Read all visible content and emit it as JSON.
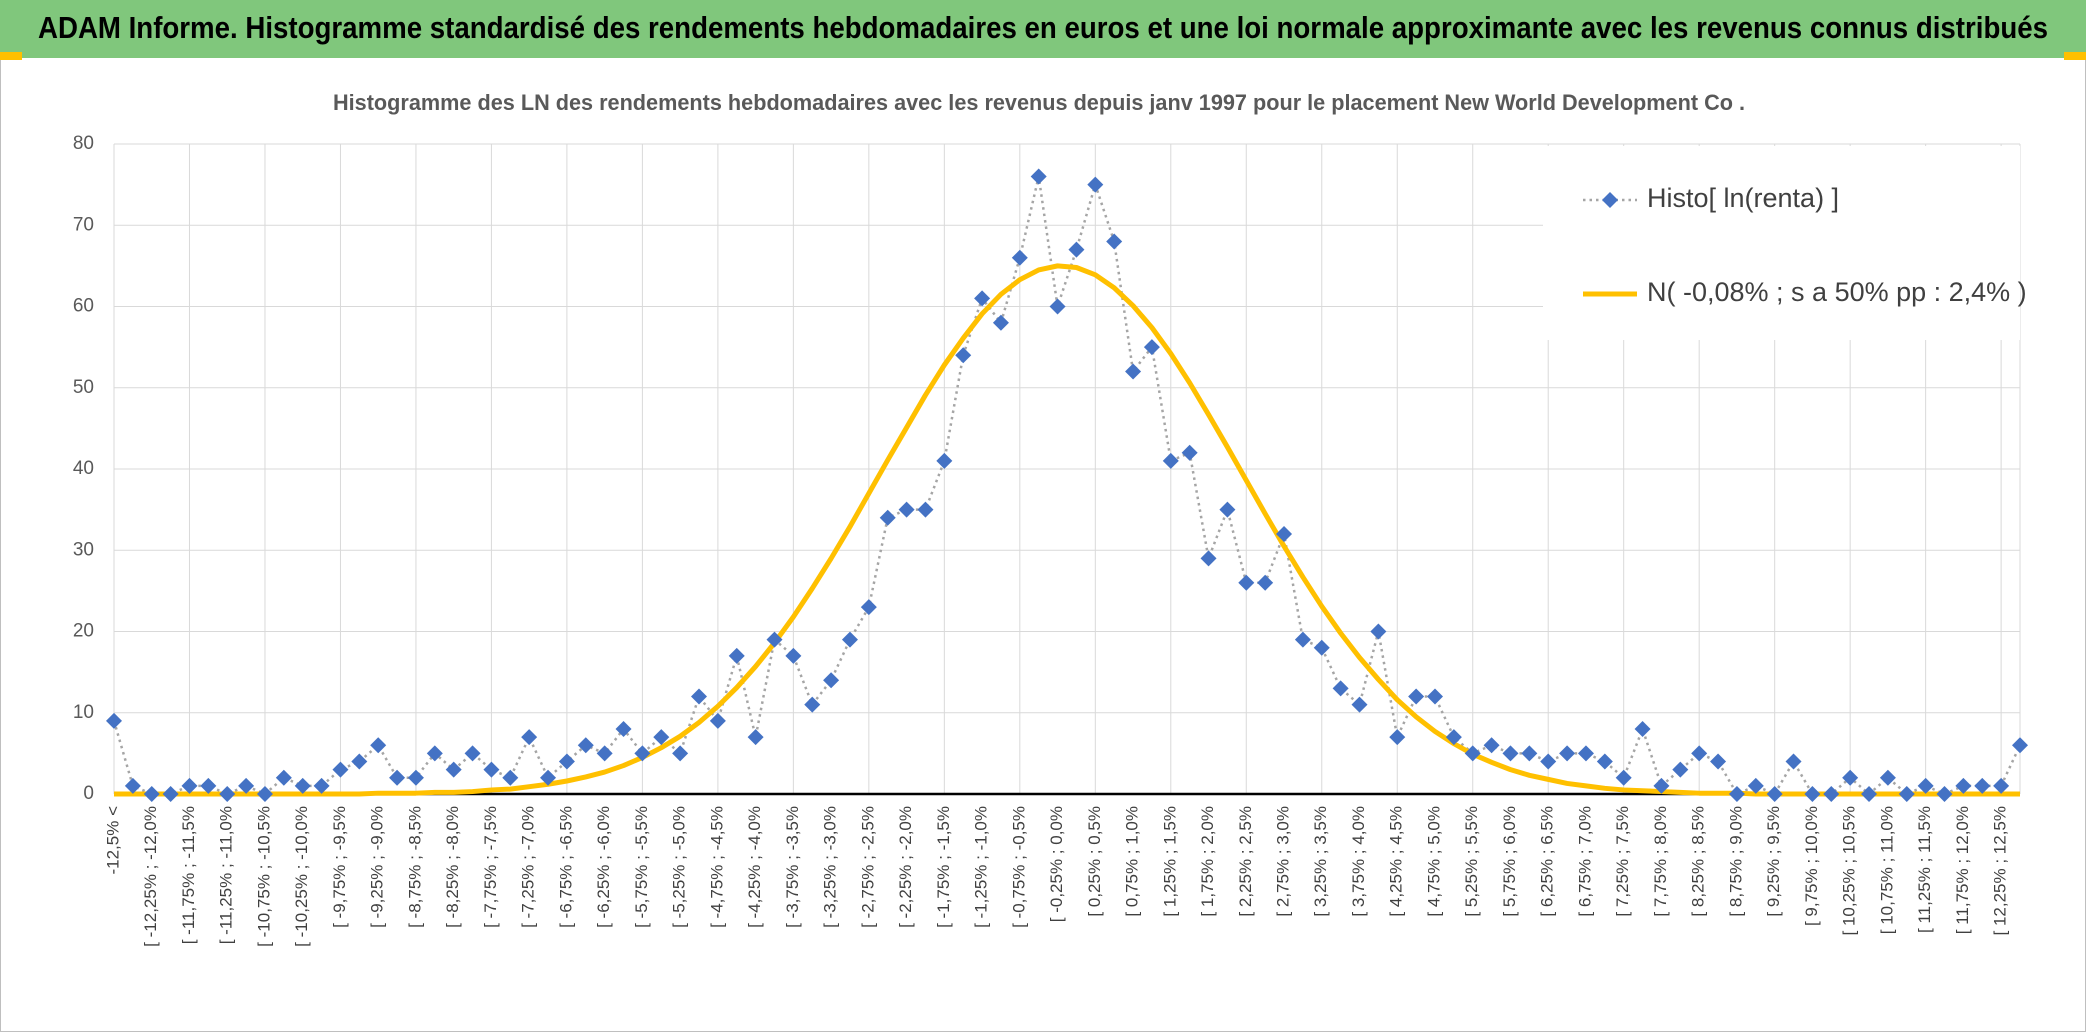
{
  "header": {
    "title": "ADAM Informe. Histogramme standardisé des rendements hebdomadaires en euros et une loi normale approximante avec les revenus connus distribués"
  },
  "chart_data": {
    "type": "line",
    "title": "Histogramme des LN des rendements hebdomadaires avec les revenus depuis janv 1997 pour le placement New World Development Co .",
    "categories": [
      "-12,5% <",
      null,
      "[ -12,25% ; -12,0%",
      null,
      "[ -11,75% ; -11,5%",
      null,
      "[ -11,25% ; -11,0%",
      null,
      "[ -10,75% ; -10,5%",
      null,
      "[ -10,25% ; -10,0%",
      null,
      "[ -9,75% ; -9,5%",
      null,
      "[ -9,25% ; -9,0%",
      null,
      "[ -8,75% ; -8,5%",
      null,
      "[ -8,25% ; -8,0%",
      null,
      "[ -7,75% ; -7,5%",
      null,
      "[ -7,25% ; -7,0%",
      null,
      "[ -6,75% ; -6,5%",
      null,
      "[ -6,25% ; -6,0%",
      null,
      "[ -5,75% ; -5,5%",
      null,
      "[ -5,25% ; -5,0%",
      null,
      "[ -4,75% ; -4,5%",
      null,
      "[ -4,25% ; -4,0%",
      null,
      "[ -3,75% ; -3,5%",
      null,
      "[ -3,25% ; -3,0%",
      null,
      "[ -2,75% ; -2,5%",
      null,
      "[ -2,25% ; -2,0%",
      null,
      "[ -1,75% ; -1,5%",
      null,
      "[ -1,25% ; -1,0%",
      null,
      "[ -0,75% ; -0,5%",
      null,
      "[ -0,25% ; 0,0%",
      null,
      "[ 0,25% ; 0,5%",
      null,
      "[ 0,75% ; 1,0%",
      null,
      "[ 1,25% ; 1,5%",
      null,
      "[ 1,75% ; 2,0%",
      null,
      "[ 2,25% ; 2,5%",
      null,
      "[ 2,75% ; 3,0%",
      null,
      "[ 3,25% ; 3,5%",
      null,
      "[ 3,75% ; 4,0%",
      null,
      "[ 4,25% ; 4,5%",
      null,
      "[ 4,75% ; 5,0%",
      null,
      "[ 5,25% ; 5,5%",
      null,
      "[ 5,75% ; 6,0%",
      null,
      "[ 6,25% ; 6,5%",
      null,
      "[ 6,75% ; 7,0%",
      null,
      "[ 7,25% ; 7,5%",
      null,
      "[ 7,75% ; 8,0%",
      null,
      "[ 8,25% ; 8,5%",
      null,
      "[ 8,75% ; 9,0%",
      null,
      "[ 9,25% ; 9,5%",
      null,
      "[ 9,75% ; 10,0%",
      null,
      "[ 10,25% ; 10,5%",
      null,
      "[ 10,75% ; 11,0%",
      null,
      "[ 11,25% ; 11,5%",
      null,
      "[ 11,75% ; 12,0%",
      null,
      "[ 12,25% ; 12,5%",
      null
    ],
    "series": [
      {
        "name": "Histo[ ln(renta) ]",
        "color": "#4472c4",
        "line_color": "#a5a5a5",
        "line_style": "dotted",
        "marker": "diamond",
        "values": [
          9,
          1,
          0,
          0,
          1,
          1,
          0,
          1,
          0,
          2,
          1,
          1,
          3,
          4,
          6,
          2,
          2,
          5,
          3,
          5,
          3,
          2,
          7,
          2,
          4,
          6,
          5,
          8,
          5,
          7,
          5,
          12,
          9,
          17,
          7,
          19,
          17,
          11,
          14,
          19,
          23,
          34,
          35,
          35,
          41,
          54,
          61,
          58,
          66,
          76,
          60,
          67,
          75,
          68,
          52,
          55,
          41,
          42,
          29,
          35,
          26,
          26,
          32,
          19,
          18,
          13,
          11,
          20,
          7,
          12,
          12,
          7,
          5,
          6,
          5,
          5,
          4,
          5,
          5,
          4,
          2,
          8,
          1,
          3,
          5,
          4,
          0,
          1,
          0,
          4,
          0,
          0,
          2,
          0,
          2,
          0,
          1,
          0,
          1,
          1,
          1,
          6
        ]
      },
      {
        "name": "N( -0,08% ; s a 50% pp : 2,4% )",
        "color": "#ffc000",
        "line_style": "solid",
        "marker": "none",
        "values": [
          0,
          0,
          0,
          0,
          0,
          0,
          0,
          0,
          0,
          0,
          0,
          0,
          0,
          0,
          0.1,
          0.1,
          0.1,
          0.2,
          0.2,
          0.3,
          0.5,
          0.6,
          0.9,
          1.2,
          1.6,
          2.1,
          2.7,
          3.5,
          4.5,
          5.7,
          7.1,
          8.8,
          10.8,
          13.1,
          15.7,
          18.6,
          21.8,
          25.3,
          29,
          32.9,
          37,
          41.1,
          45.1,
          49.1,
          52.8,
          56.1,
          59.1,
          61.5,
          63.3,
          64.5,
          65,
          64.8,
          63.9,
          62.3,
          60.1,
          57.4,
          54.2,
          50.6,
          46.7,
          42.7,
          38.6,
          34.5,
          30.5,
          26.7,
          23.1,
          19.8,
          16.8,
          14.1,
          11.6,
          9.5,
          7.7,
          6.2,
          4.9,
          3.9,
          3,
          2.3,
          1.8,
          1.3,
          1,
          0.7,
          0.5,
          0.4,
          0.3,
          0.2,
          0.1,
          0.1,
          0.1,
          0,
          0,
          0,
          0,
          0,
          0,
          0,
          0,
          0,
          0,
          0,
          0,
          0,
          0,
          0
        ]
      }
    ],
    "ylim": [
      0,
      80
    ],
    "yticks": [
      0,
      10,
      20,
      30,
      40,
      50,
      60,
      70,
      80
    ],
    "grid": true,
    "legend": "top-right"
  }
}
